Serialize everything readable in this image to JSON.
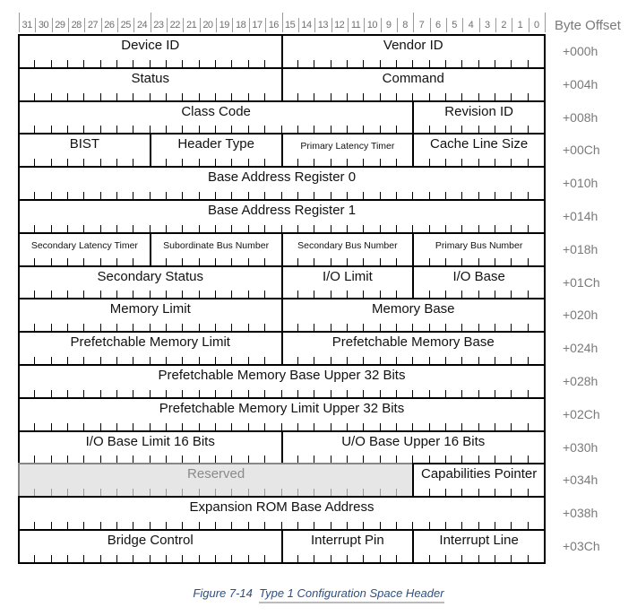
{
  "header": {
    "bit_numbers": [
      "31",
      "30",
      "29",
      "28",
      "27",
      "26",
      "25",
      "24",
      "23",
      "22",
      "21",
      "20",
      "19",
      "18",
      "17",
      "16",
      "15",
      "14",
      "13",
      "12",
      "11",
      "10",
      "9",
      "8",
      "7",
      "6",
      "5",
      "4",
      "3",
      "2",
      "1",
      "0"
    ],
    "byte_offset_label": "Byte Offset"
  },
  "rows": [
    {
      "offset": "+000h",
      "fields": [
        {
          "label": "Device ID",
          "bits": 16
        },
        {
          "label": "Vendor ID",
          "bits": 16
        }
      ]
    },
    {
      "offset": "+004h",
      "fields": [
        {
          "label": "Status",
          "bits": 16
        },
        {
          "label": "Command",
          "bits": 16
        }
      ]
    },
    {
      "offset": "+008h",
      "fields": [
        {
          "label": "Class Code",
          "bits": 24
        },
        {
          "label": "Revision ID",
          "bits": 8
        }
      ]
    },
    {
      "offset": "+00Ch",
      "fields": [
        {
          "label": "BIST",
          "bits": 8
        },
        {
          "label": "Header Type",
          "bits": 8
        },
        {
          "label": "Primary Latency Timer",
          "bits": 8,
          "small": true
        },
        {
          "label": "Cache Line Size",
          "bits": 8
        }
      ]
    },
    {
      "offset": "+010h",
      "fields": [
        {
          "label": "Base Address Register 0",
          "bits": 32
        }
      ]
    },
    {
      "offset": "+014h",
      "fields": [
        {
          "label": "Base Address Register 1",
          "bits": 32
        }
      ]
    },
    {
      "offset": "+018h",
      "fields": [
        {
          "label": "Secondary Latency Timer",
          "bits": 8,
          "small": true
        },
        {
          "label": "Subordinate Bus Number",
          "bits": 8,
          "small": true
        },
        {
          "label": "Secondary Bus Number",
          "bits": 8,
          "small": true
        },
        {
          "label": "Primary Bus Number",
          "bits": 8,
          "small": true
        }
      ]
    },
    {
      "offset": "+01Ch",
      "fields": [
        {
          "label": "Secondary Status",
          "bits": 16
        },
        {
          "label": "I/O Limit",
          "bits": 8
        },
        {
          "label": "I/O Base",
          "bits": 8
        }
      ]
    },
    {
      "offset": "+020h",
      "fields": [
        {
          "label": "Memory Limit",
          "bits": 16
        },
        {
          "label": "Memory Base",
          "bits": 16
        }
      ]
    },
    {
      "offset": "+024h",
      "fields": [
        {
          "label": "Prefetchable Memory Limit",
          "bits": 16
        },
        {
          "label": "Prefetchable Memory Base",
          "bits": 16
        }
      ]
    },
    {
      "offset": "+028h",
      "fields": [
        {
          "label": "Prefetchable Memory Base Upper 32 Bits",
          "bits": 32
        }
      ]
    },
    {
      "offset": "+02Ch",
      "fields": [
        {
          "label": "Prefetchable Memory Limit Upper 32 Bits",
          "bits": 32
        }
      ]
    },
    {
      "offset": "+030h",
      "fields": [
        {
          "label": "I/O Base Limit 16 Bits",
          "bits": 16
        },
        {
          "label": "U/O Base Upper 16 Bits",
          "bits": 16
        }
      ]
    },
    {
      "offset": "+034h",
      "fields": [
        {
          "label": "Reserved",
          "bits": 24,
          "reserved": true
        },
        {
          "label": "Capabilities Pointer",
          "bits": 8
        }
      ]
    },
    {
      "offset": "+038h",
      "fields": [
        {
          "label": "Expansion ROM Base Address",
          "bits": 32
        }
      ]
    },
    {
      "offset": "+03Ch",
      "fields": [
        {
          "label": "Bridge Control",
          "bits": 16
        },
        {
          "label": "Interrupt Pin",
          "bits": 8
        },
        {
          "label": "Interrupt Line",
          "bits": 8
        }
      ]
    }
  ],
  "caption": {
    "figure_number": "Figure  7-14",
    "title": "Type 1 Configuration Space Header"
  },
  "colors": {
    "caption": "#2c4f86",
    "offset_text": "#7a7a7a",
    "reserved_fill": "#e6e6e6"
  }
}
